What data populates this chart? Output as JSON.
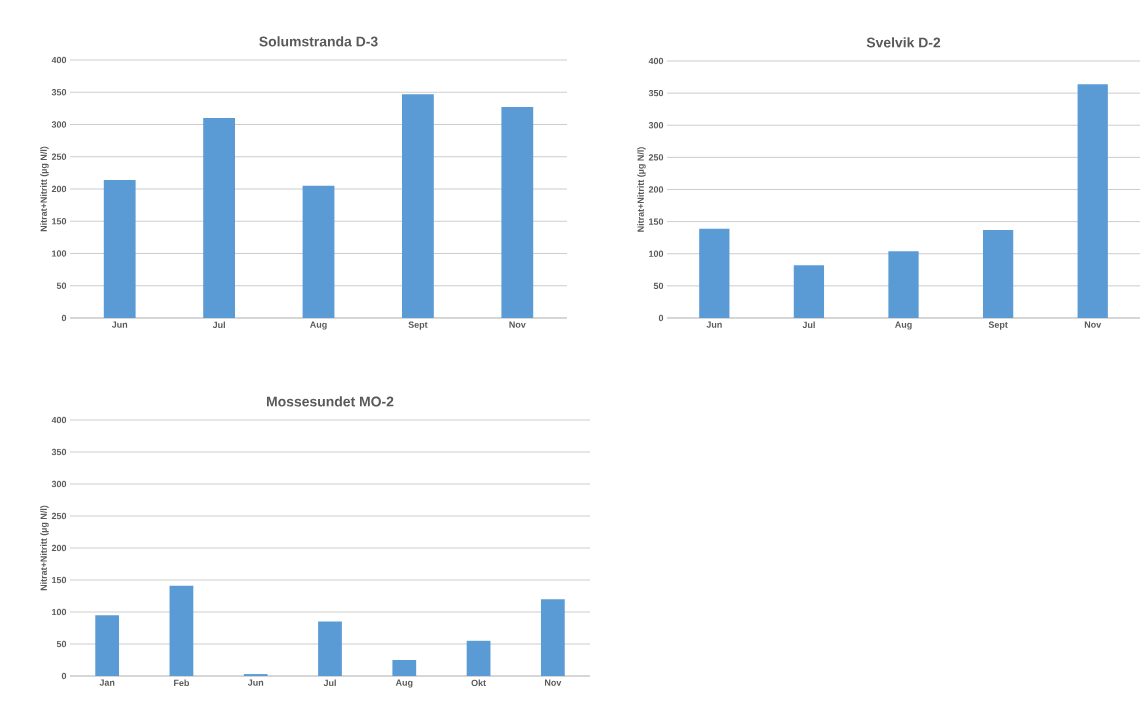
{
  "chart_data": [
    {
      "type": "bar",
      "title": "Solumstranda D-3",
      "ylabel": "Nitrat+Nitritt (µg N/l)",
      "categories": [
        "Jun",
        "Jul",
        "Aug",
        "Sept",
        "Nov"
      ],
      "values": [
        214,
        310,
        205,
        347,
        327
      ],
      "color": "#5b9bd5",
      "ylim": [
        0,
        400
      ],
      "yticks": [
        0,
        50,
        100,
        150,
        200,
        250,
        300,
        350,
        400
      ],
      "grid": "y"
    },
    {
      "type": "bar",
      "title": "Svelvik D-2",
      "ylabel": "Nitrat+Nitritt (µg N/l)",
      "categories": [
        "Jun",
        "Jul",
        "Aug",
        "Sept",
        "Nov"
      ],
      "values": [
        139,
        82,
        104,
        137,
        364
      ],
      "color": "#5b9bd5",
      "ylim": [
        0,
        400
      ],
      "yticks": [
        0,
        50,
        100,
        150,
        200,
        250,
        300,
        350,
        400
      ],
      "grid": "y"
    },
    {
      "type": "bar",
      "title": "Mossesundet MO-2",
      "ylabel": "Nitrat+Nitritt (µg N/l)",
      "categories": [
        "Jan",
        "Feb",
        "Jun",
        "Jul",
        "Aug",
        "Okt",
        "Nov"
      ],
      "values": [
        95,
        141,
        3,
        85,
        25,
        55,
        120
      ],
      "color": "#5b9bd5",
      "ylim": [
        0,
        400
      ],
      "yticks": [
        0,
        50,
        100,
        150,
        200,
        250,
        300,
        350,
        400
      ],
      "grid": "y"
    }
  ]
}
